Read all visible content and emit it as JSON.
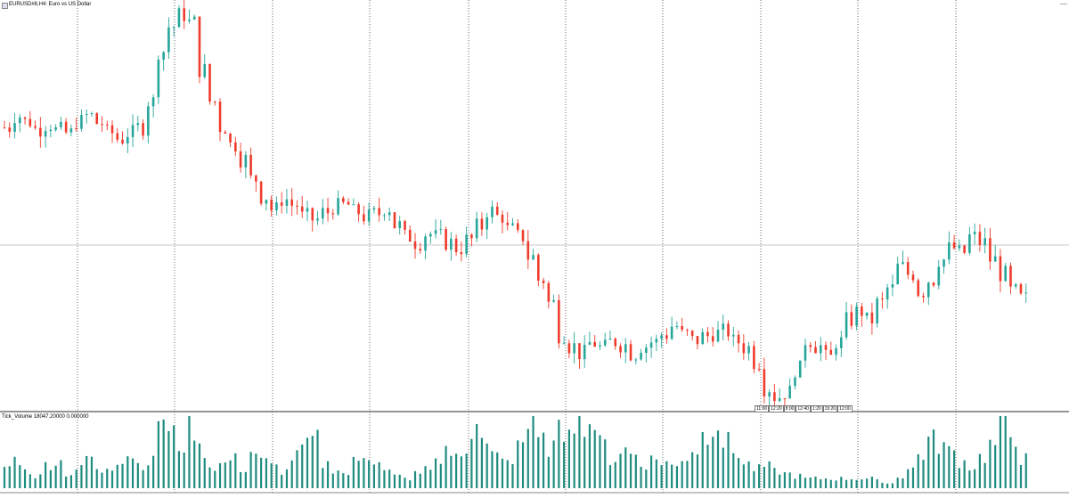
{
  "header": {
    "symbol_title": "EURUSD#8,H4: Euro vs US Dollar"
  },
  "volume_panel": {
    "label": "Tick_Volume 18047.20000 0.000000"
  },
  "time_ticks": [
    "11:00",
    "12:20",
    "8:00",
    "12:40",
    "1:20",
    "19:20",
    "12:00"
  ],
  "colors": {
    "bull": "#26a69a",
    "bear": "#ef3b2c",
    "volume": "#1f8c7f",
    "grid": "#444444",
    "separator": "#555555",
    "price_line": "#c8c8c8"
  },
  "chart_data": {
    "type": "candlestick",
    "grid": true,
    "series": [
      {
        "name": "EURUSD",
        "close_path": [
          1.0862,
          1.087,
          1.0866,
          1.0861,
          1.0864,
          1.086,
          1.0858,
          1.0866,
          1.087,
          1.0865,
          1.0858,
          1.0854,
          1.0858,
          1.0862,
          1.088,
          1.0915,
          1.0932,
          1.094,
          1.0935,
          1.0902,
          1.088,
          1.0862,
          1.085,
          1.084,
          1.0826,
          1.0814,
          1.0805,
          1.0812,
          1.0808,
          1.08,
          1.0798,
          1.0803,
          1.0807,
          1.0808,
          1.0803,
          1.08,
          1.0802,
          1.0806,
          1.0794,
          1.0786,
          1.0782,
          1.0788,
          1.0786,
          1.0782,
          1.0778,
          1.0784,
          1.0793,
          1.0804,
          1.08,
          1.0791,
          1.0786,
          1.0772,
          1.0756,
          1.074,
          1.0718,
          1.071,
          1.0705,
          1.0712,
          1.0709,
          1.0713,
          1.0711,
          1.0705,
          1.071,
          1.0713,
          1.0718,
          1.0724,
          1.0718,
          1.0714,
          1.0717,
          1.0719,
          1.072,
          1.0713,
          1.0709,
          1.0699,
          1.0681,
          1.0675,
          1.0678,
          1.0694,
          1.0714,
          1.071,
          1.0702,
          1.0713,
          1.0728,
          1.0734,
          1.0728,
          1.074,
          1.075,
          1.0765,
          1.076,
          1.0748,
          1.0756,
          1.077,
          1.0778,
          1.0775,
          1.0786,
          1.0782,
          1.077,
          1.076,
          1.0748,
          1.0743
        ],
        "volume": [
          9,
          12,
          7,
          5,
          10,
          11,
          6,
          8,
          13,
          7,
          9,
          12,
          14,
          10,
          11,
          30,
          22,
          18,
          25,
          16,
          9,
          10,
          12,
          8,
          15,
          11,
          9,
          7,
          13,
          17,
          20,
          10,
          8,
          6,
          11,
          14,
          12,
          7,
          5,
          4,
          6,
          8,
          12,
          15,
          13,
          18,
          22,
          16,
          14,
          12,
          20,
          25,
          19,
          17,
          23,
          30,
          28,
          27,
          18,
          12,
          16,
          14,
          10,
          12,
          11,
          9,
          13,
          16,
          22,
          28,
          19,
          15,
          10,
          8,
          9,
          7,
          6,
          5,
          4,
          4,
          4,
          4,
          4,
          4,
          4,
          3,
          2,
          5,
          8,
          14,
          20,
          18,
          15,
          11,
          9,
          13,
          18,
          26,
          22,
          12
        ]
      }
    ]
  }
}
